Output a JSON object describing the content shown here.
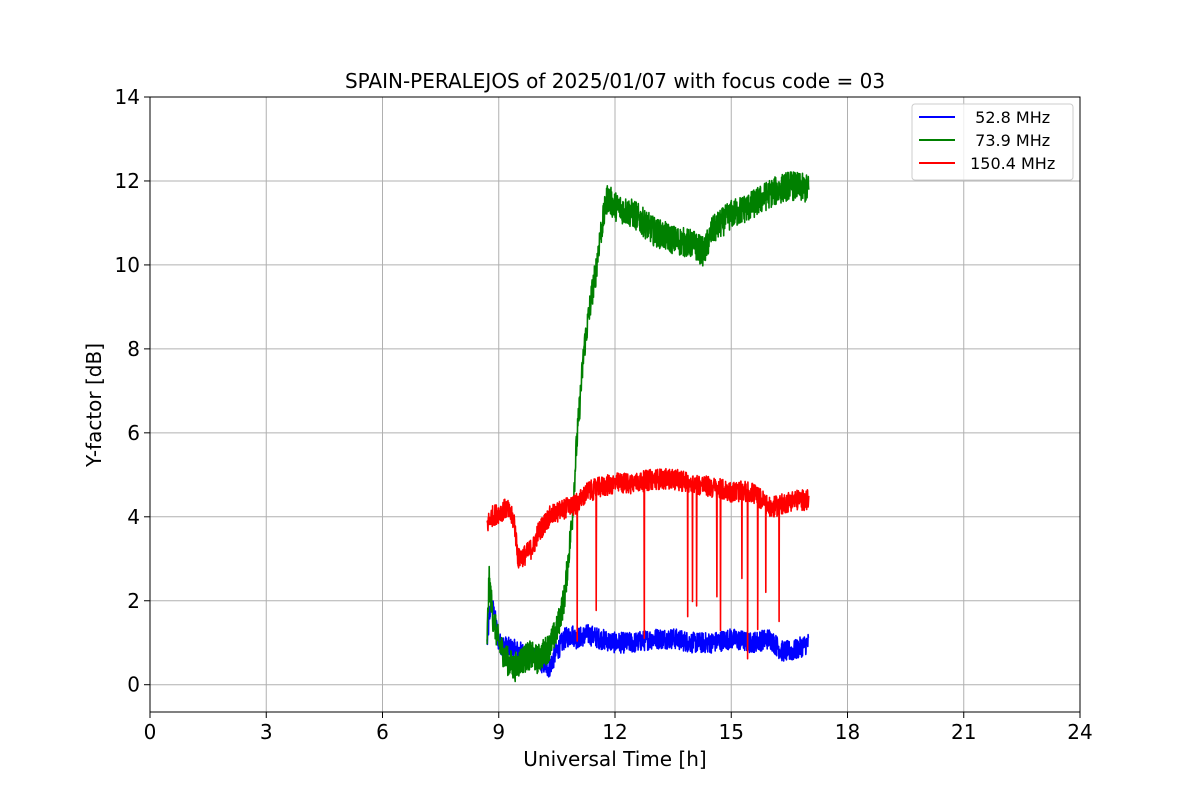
{
  "chart_data": {
    "type": "line",
    "title": "SPAIN-PERALEJOS of 2025/01/07 with focus code = 03",
    "xlabel": "Universal Time [h]",
    "ylabel": "Y-factor [dB]",
    "xlim": [
      0,
      24
    ],
    "ylim": [
      -0.65,
      14
    ],
    "xticks": [
      0,
      3,
      6,
      9,
      12,
      15,
      18,
      21,
      24
    ],
    "yticks": [
      0,
      2,
      4,
      6,
      8,
      10,
      12,
      14
    ],
    "grid": true,
    "legend_position": "top-right",
    "series": [
      {
        "name": "  52.8 MHz",
        "color": "#0000ff",
        "x": [
          8.7,
          8.8,
          8.9,
          9.0,
          9.2,
          9.5,
          9.8,
          10.0,
          10.3,
          10.5,
          10.7,
          10.9,
          11.0,
          11.3,
          11.6,
          12.0,
          12.5,
          13.0,
          13.5,
          14.0,
          14.5,
          15.0,
          15.5,
          16.0,
          16.3,
          16.6,
          17.0
        ],
        "y": [
          1.0,
          2.0,
          1.6,
          1.0,
          0.9,
          0.8,
          0.7,
          0.6,
          0.4,
          0.8,
          1.1,
          1.2,
          1.1,
          1.2,
          1.1,
          1.0,
          1.0,
          1.1,
          1.1,
          1.0,
          1.0,
          1.1,
          1.0,
          1.1,
          0.8,
          0.8,
          1.0
        ],
        "noise": 0.25
      },
      {
        "name": "  73.9 MHz",
        "color": "#008000",
        "x": [
          8.7,
          8.75,
          8.85,
          9.0,
          9.2,
          9.4,
          9.6,
          9.8,
          10.0,
          10.3,
          10.5,
          10.7,
          10.9,
          11.0,
          11.1,
          11.2,
          11.4,
          11.5,
          11.6,
          11.8,
          12.0,
          12.5,
          13.0,
          13.5,
          14.0,
          14.3,
          14.5,
          15.0,
          15.5,
          16.0,
          16.5,
          17.0
        ],
        "y": [
          1.1,
          2.5,
          1.6,
          1.0,
          0.6,
          0.4,
          0.6,
          0.7,
          0.6,
          0.9,
          1.3,
          2.1,
          4.0,
          5.6,
          6.8,
          8.0,
          9.3,
          9.8,
          10.6,
          11.6,
          11.4,
          11.2,
          10.8,
          10.6,
          10.5,
          10.3,
          10.8,
          11.2,
          11.4,
          11.7,
          11.9,
          11.8
        ],
        "noise": 0.35
      },
      {
        "name": " 150.4 MHz",
        "color": "#ff0000",
        "x": [
          8.7,
          8.8,
          9.0,
          9.2,
          9.4,
          9.5,
          9.7,
          9.9,
          10.0,
          10.3,
          10.5,
          10.7,
          11.0,
          11.3,
          11.6,
          12.0,
          12.5,
          13.0,
          13.5,
          14.0,
          14.5,
          15.0,
          15.5,
          15.8,
          16.0,
          16.3,
          16.6,
          17.0
        ],
        "y": [
          3.8,
          4.0,
          4.1,
          4.2,
          3.9,
          3.0,
          3.1,
          3.3,
          3.6,
          4.0,
          4.1,
          4.2,
          4.3,
          4.6,
          4.7,
          4.8,
          4.8,
          4.9,
          4.9,
          4.8,
          4.7,
          4.6,
          4.6,
          4.4,
          4.2,
          4.3,
          4.4,
          4.4
        ],
        "noise": 0.25
      }
    ]
  }
}
